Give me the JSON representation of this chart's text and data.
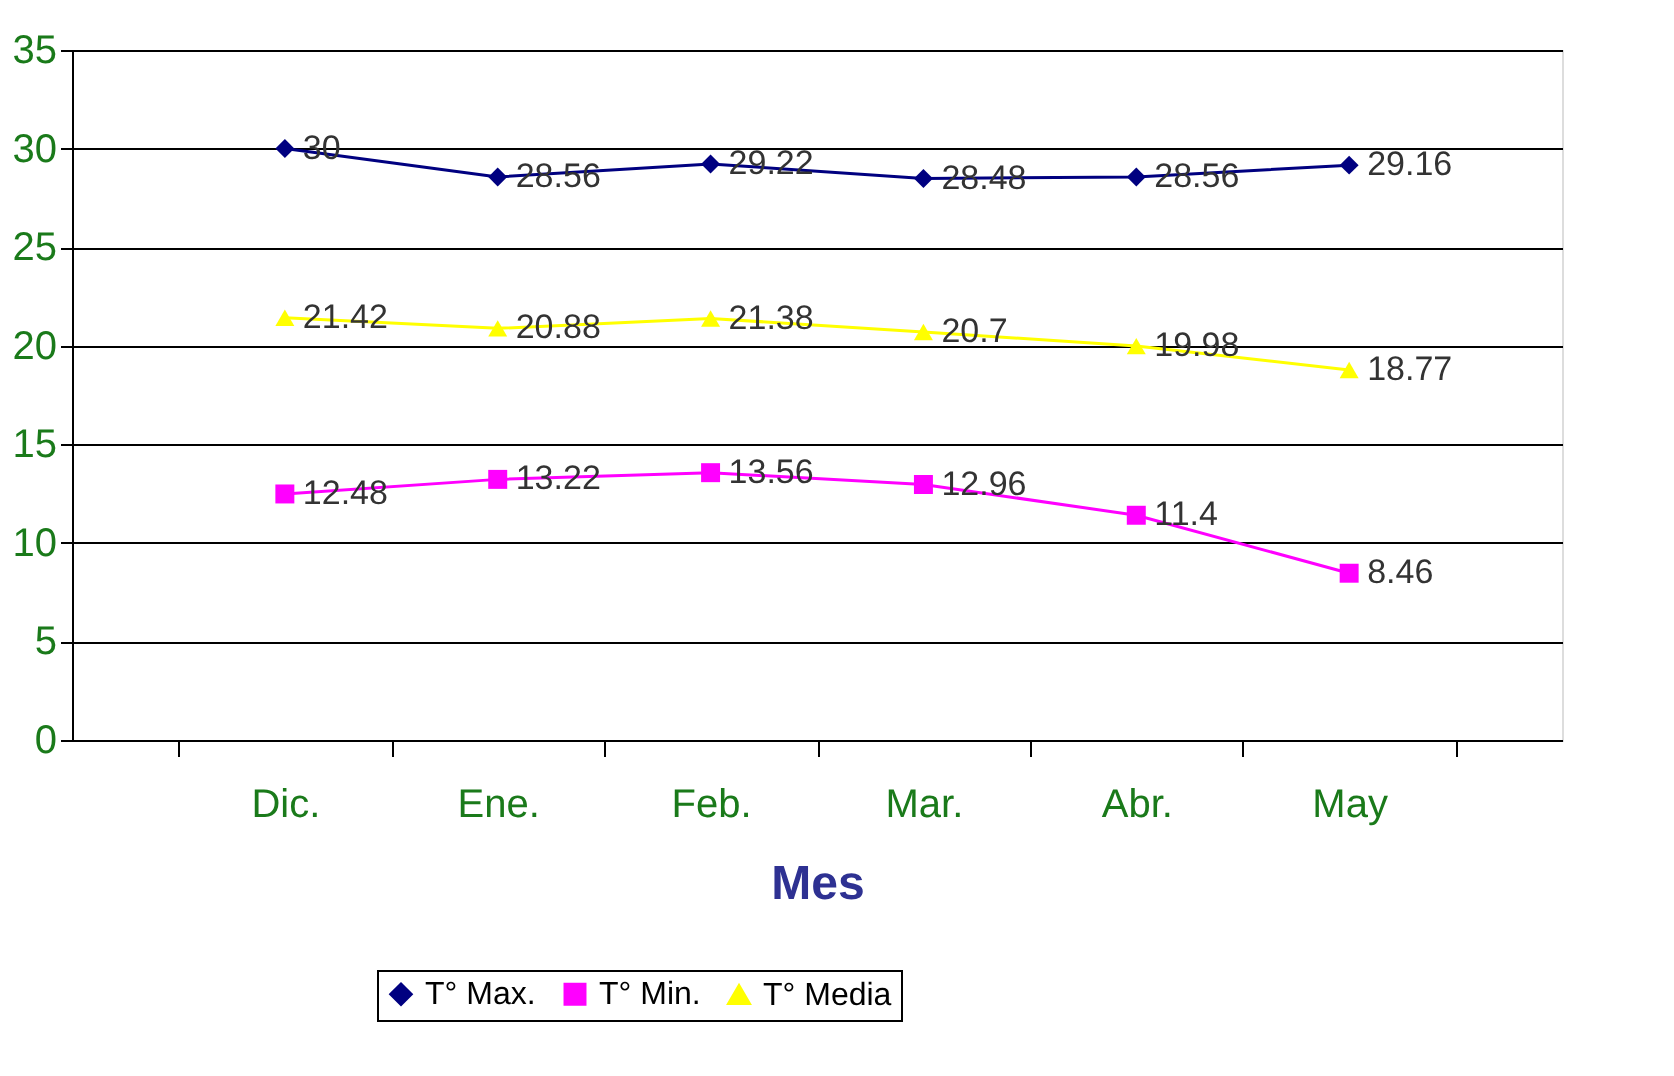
{
  "chart_data": {
    "type": "line",
    "xlabel": "Mes",
    "categories": [
      "Dic.",
      "Ene.",
      "Feb.",
      "Mar.",
      "Abr.",
      "May"
    ],
    "series": [
      {
        "name": "T° Max.",
        "color": "#000080",
        "marker": "diamond",
        "values": [
          30,
          28.56,
          29.22,
          28.48,
          28.56,
          29.16
        ]
      },
      {
        "name": "T° Min.",
        "color": "#ff00ff",
        "marker": "square",
        "values": [
          12.48,
          13.22,
          13.56,
          12.96,
          11.4,
          8.46
        ]
      },
      {
        "name": "T° Media",
        "color": "#ffff00",
        "marker": "triangle",
        "values": [
          21.42,
          20.88,
          21.38,
          20.7,
          19.98,
          18.77
        ]
      }
    ],
    "ylim": [
      0,
      35
    ],
    "yticks": [
      0,
      5,
      10,
      15,
      20,
      25,
      30,
      35
    ],
    "grid": "y",
    "legend": "bottom",
    "data_labels": true,
    "line_style": "solid"
  }
}
